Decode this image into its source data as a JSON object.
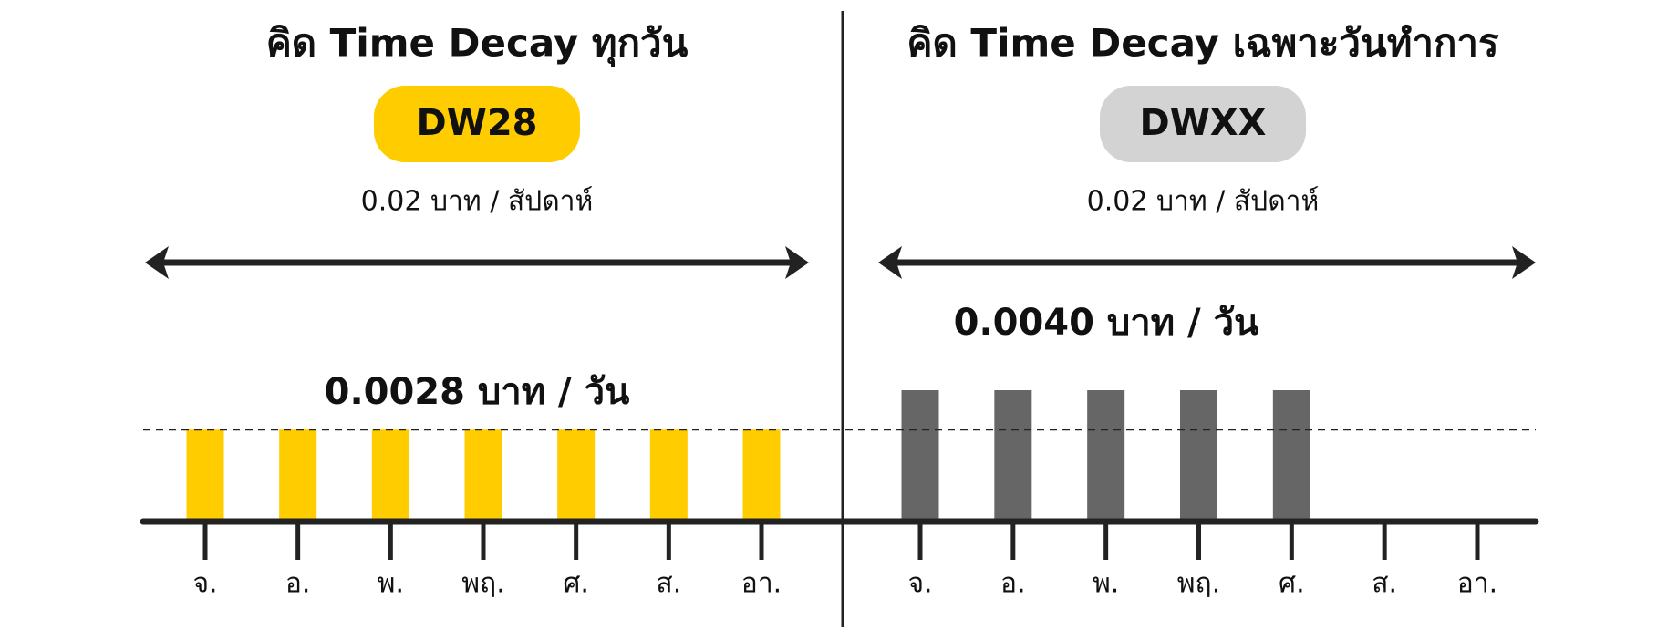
{
  "chart_data": [
    {
      "type": "bar",
      "title": "คิด Time Decay ทุกวัน",
      "badge": "DW28",
      "badge_color": "#ffcc00",
      "subtitle": "0.02 บาท / สัปดาห์",
      "annotation": "0.0028 บาท / วัน",
      "categories": [
        "จ.",
        "อ.",
        "พ.",
        "พฤ.",
        "ศ.",
        "ส.",
        "อา."
      ],
      "values": [
        0.0028,
        0.0028,
        0.0028,
        0.0028,
        0.0028,
        0.0028,
        0.0028
      ],
      "color": "#ffcc00",
      "ylim": [
        0,
        0.005
      ]
    },
    {
      "type": "bar",
      "title": "คิด Time Decay เฉพาะวันทำการ",
      "badge": "DWXX",
      "badge_color": "#d3d3d3",
      "subtitle": "0.02 บาท / สัปดาห์",
      "annotation": "0.0040 บาท / วัน",
      "categories": [
        "จ.",
        "อ.",
        "พ.",
        "พฤ.",
        "ศ.",
        "ส.",
        "อา."
      ],
      "values": [
        0.004,
        0.004,
        0.004,
        0.004,
        0.004,
        0,
        0
      ],
      "color": "#666666",
      "ylim": [
        0,
        0.005
      ]
    }
  ]
}
